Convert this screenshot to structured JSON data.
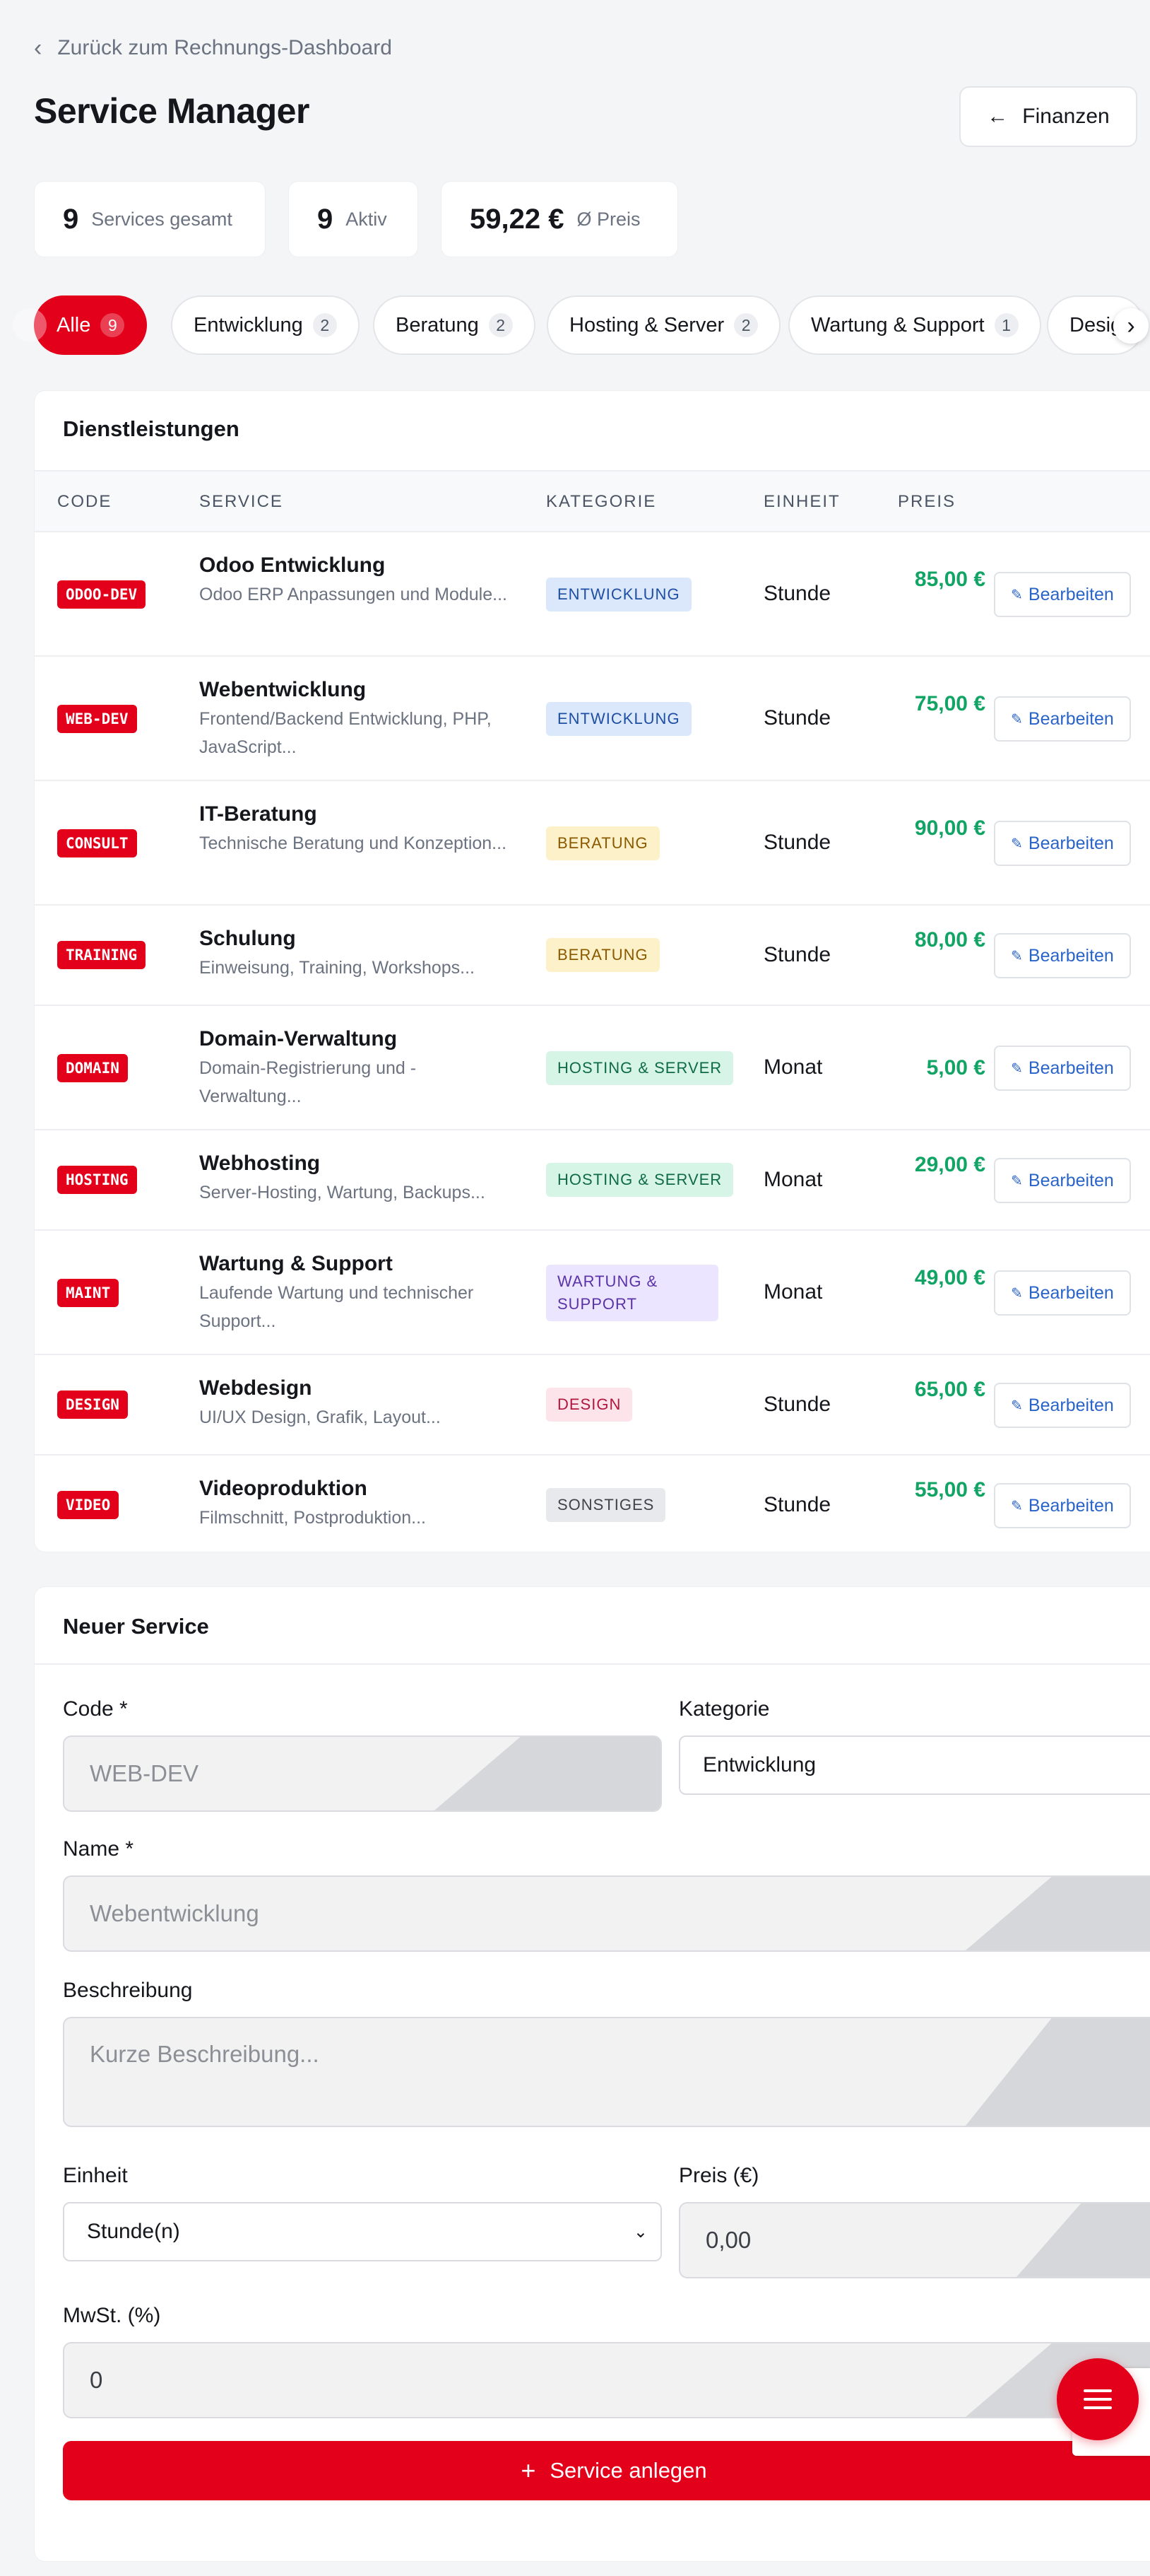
{
  "nav": {
    "back_label": "Zurück zum Rechnungs-Dashboard"
  },
  "header": {
    "title": "Service Manager",
    "finance_button": "Finanzen"
  },
  "stats": [
    {
      "value": "9",
      "label": "Services gesamt"
    },
    {
      "value": "9",
      "label": "Aktiv"
    },
    {
      "value": "59,22 €",
      "label": "Ø Preis"
    }
  ],
  "filters": [
    {
      "label": "Alle",
      "count": "9",
      "active": true
    },
    {
      "label": "Entwicklung",
      "count": "2"
    },
    {
      "label": "Beratung",
      "count": "2"
    },
    {
      "label": "Hosting & Server",
      "count": "2"
    },
    {
      "label": "Wartung & Support",
      "count": "1"
    },
    {
      "label": "Desig"
    }
  ],
  "table": {
    "title": "Dienstleistungen",
    "columns": [
      "CODE",
      "SERVICE",
      "KATEGORIE",
      "EINHEIT",
      "PREIS"
    ],
    "edit_label": "Bearbeiten",
    "rows": [
      {
        "code": "ODOO-DEV",
        "name": "Odoo Entwicklung",
        "desc": "Odoo ERP Anpassungen und Module...",
        "category": "ENTWICKLUNG",
        "unit": "Stunde",
        "price": "85,00 €"
      },
      {
        "code": "WEB-DEV",
        "name": "Webentwicklung",
        "desc": "Frontend/Backend Entwicklung, PHP, JavaScript...",
        "category": "ENTWICKLUNG",
        "unit": "Stunde",
        "price": "75,00 €"
      },
      {
        "code": "CONSULT",
        "name": "IT-Beratung",
        "desc": "Technische Beratung und Konzeption...",
        "category": "BERATUNG",
        "unit": "Stunde",
        "price": "90,00 €"
      },
      {
        "code": "TRAINING",
        "name": "Schulung",
        "desc": "Einweisung, Training, Workshops...",
        "category": "BERATUNG",
        "unit": "Stunde",
        "price": "80,00 €"
      },
      {
        "code": "DOMAIN",
        "name": "Domain-Verwaltung",
        "desc": "Domain-Registrierung und -Verwaltung...",
        "category": "HOSTING & SERVER",
        "unit": "Monat",
        "price": "5,00 €"
      },
      {
        "code": "HOSTING",
        "name": "Webhosting",
        "desc": "Server-Hosting, Wartung, Backups...",
        "category": "HOSTING & SERVER",
        "unit": "Monat",
        "price": "29,00 €"
      },
      {
        "code": "MAINT",
        "name": "Wartung & Support",
        "desc": "Laufende Wartung und technischer Support...",
        "category": "WARTUNG & SUPPORT",
        "unit": "Monat",
        "price": "49,00 €"
      },
      {
        "code": "DESIGN",
        "name": "Webdesign",
        "desc": "UI/UX Design, Grafik, Layout...",
        "category": "DESIGN",
        "unit": "Stunde",
        "price": "65,00 €"
      },
      {
        "code": "VIDEO",
        "name": "Videoproduktion",
        "desc": "Filmschnitt, Postproduktion...",
        "category": "SONSTIGES",
        "unit": "Stunde",
        "price": "55,00 €"
      }
    ]
  },
  "form": {
    "title": "Neuer Service",
    "code_label": "Code *",
    "code_placeholder": "WEB-DEV",
    "category_label": "Kategorie",
    "category_value": "Entwicklung",
    "name_label": "Name *",
    "name_placeholder": "Webentwicklung",
    "description_label": "Beschreibung",
    "description_placeholder": "Kurze Beschreibung...",
    "unit_label": "Einheit",
    "unit_value": "Stunde(n)",
    "price_label": "Preis (€)",
    "price_value": "0,00",
    "vat_label": "MwSt. (%)",
    "vat_value": "0",
    "submit_label": "Service anlegen"
  },
  "icons": {
    "back": "chevron-left-icon",
    "finance": "arrow-left-icon",
    "edit": "pencil-icon",
    "submit": "plus-icon",
    "fab": "menu-icon",
    "chips_scroll": "chevron-right-icon"
  },
  "colors": {
    "brand_red": "#e3001b",
    "price_green": "#12a465",
    "link_blue": "#2a64c9",
    "background": "#f4f5f7"
  }
}
